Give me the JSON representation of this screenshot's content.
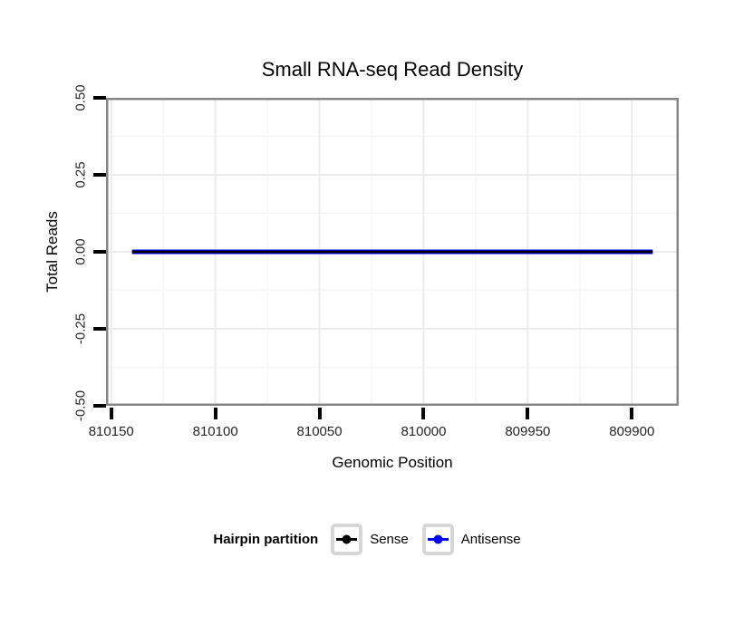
{
  "page": {
    "background": "#ffffff"
  },
  "chart_data": {
    "type": "line",
    "title": "Small RNA-seq Read Density",
    "xlabel": "Genomic Position",
    "ylabel": "Total Reads",
    "grid": true,
    "legend_position": "bottom",
    "x_axis": {
      "reversed": true,
      "lim": [
        810152.5,
        809877.5
      ],
      "tick_values": [
        810150,
        810100,
        810050,
        810000,
        809950,
        809900
      ],
      "tick_labels": [
        "810150",
        "810100",
        "810050",
        "810000",
        "809950",
        "809900"
      ]
    },
    "y_axis": {
      "lim": [
        -0.5,
        0.5
      ],
      "tick_values": [
        0.5,
        0.25,
        0,
        -0.25,
        -0.5
      ],
      "tick_labels": [
        "0.50",
        "0.25",
        "0.00",
        "-0.25",
        "-0.50"
      ]
    },
    "series": [
      {
        "name": "Sense",
        "color": "#000000",
        "x": [
          810140,
          809890
        ],
        "y": [
          0,
          0
        ]
      },
      {
        "name": "Antisense",
        "color": "#0000ff",
        "x": [
          810140,
          809890
        ],
        "y": [
          0,
          0
        ]
      }
    ]
  },
  "legend": {
    "title": "Hairpin partition",
    "items": [
      {
        "label": "Sense",
        "color": "#000000"
      },
      {
        "label": "Antisense",
        "color": "#0000ff"
      }
    ]
  },
  "colors": {
    "panel_border": "#868686",
    "tick": "#000000",
    "axis_text": "#262626",
    "title_text": "#000000",
    "grid_major": "#ececec",
    "grid_minor": "#f6f6f6",
    "legend_key_border": "#d6d6d6",
    "legend_key_bg": "#ffffff"
  }
}
